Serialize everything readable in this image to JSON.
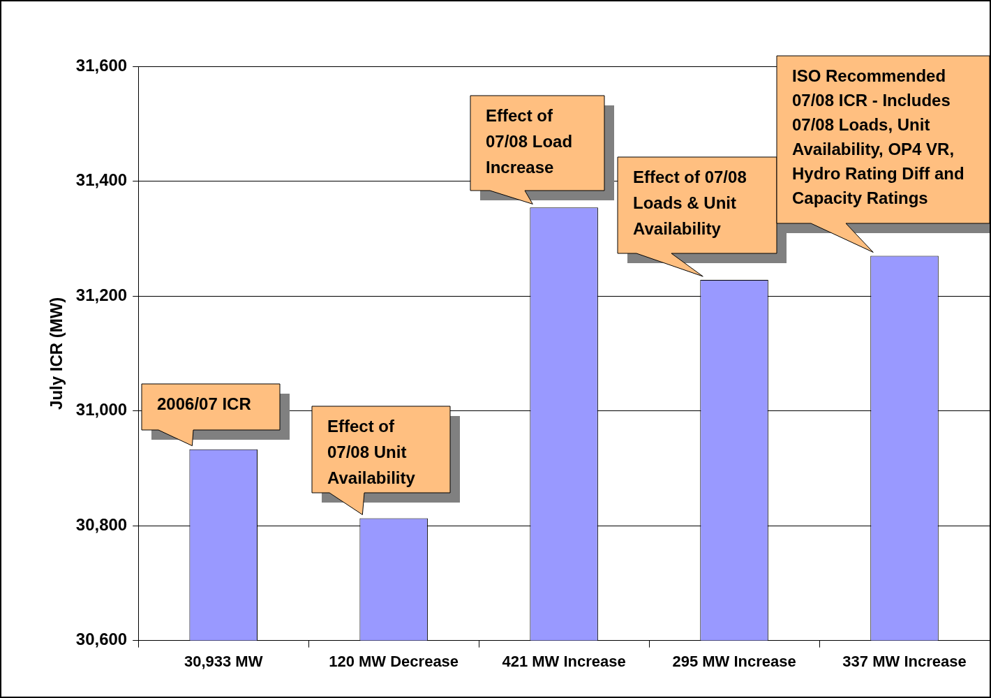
{
  "chart_data": {
    "type": "bar",
    "ylabel": "July ICR (MW)",
    "categories": [
      "30,933 MW",
      "120 MW Decrease",
      "421 MW Increase",
      "295 MW Increase",
      "337 MW Increase"
    ],
    "values": [
      30933,
      30813,
      31354,
      31228,
      31270
    ],
    "color": "#9999ff",
    "ylim": [
      30600,
      31600
    ],
    "yticks": [
      {
        "value": 30600,
        "label": "30,600"
      },
      {
        "value": 30800,
        "label": "30,800"
      },
      {
        "value": 31000,
        "label": "31,000"
      },
      {
        "value": 31200,
        "label": "31,200"
      },
      {
        "value": 31400,
        "label": "31,400"
      },
      {
        "value": 31600,
        "label": "31,600"
      }
    ],
    "grid": "y",
    "legend": false,
    "annotations": [
      {
        "text": "2006/07 ICR",
        "x": "30,933 MW",
        "y": 30933
      },
      {
        "text": "Effect of 07/08 Unit Availability",
        "x": "120 MW Decrease",
        "y": 30813
      },
      {
        "text": "Effect of 07/08 Load Increase",
        "x": "421 MW Increase",
        "y": 31354
      },
      {
        "text": "Effect of 07/08 Loads & Unit Availability",
        "x": "295 MW Increase",
        "y": 31228
      },
      {
        "text": "ISO Recommended 07/08 ICR - Includes 07/08 Loads, Unit Availability, OP4 VR, Hydro Rating Diff and Capacity Ratings",
        "x": "337 MW Increase",
        "y": 31270
      }
    ]
  }
}
